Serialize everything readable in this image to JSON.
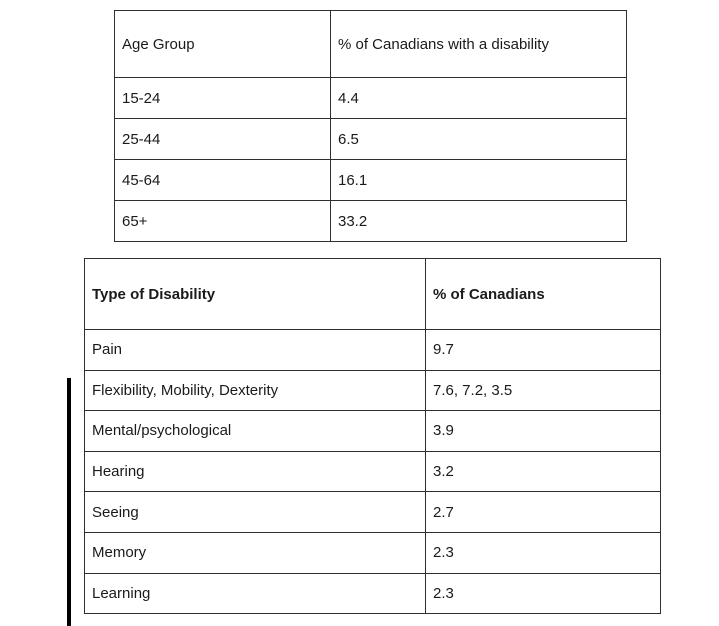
{
  "page": {
    "background_color": "#ffffff",
    "border_color": "#2f2f2f",
    "text_color": "#1a1a1a",
    "change_bar_color": "#000000"
  },
  "age_table": {
    "columns": [
      "Age Group",
      "% of Canadians with a disability"
    ],
    "rows": [
      [
        "15-24",
        "4.4"
      ],
      [
        "25-44",
        "6.5"
      ],
      [
        "45-64",
        "16.1"
      ],
      [
        "65+",
        "33.2"
      ]
    ]
  },
  "disability_type_table": {
    "columns": [
      "Type of Disability",
      "% of Canadians"
    ],
    "rows": [
      [
        "Pain",
        "9.7"
      ],
      [
        "Flexibility, Mobility, Dexterity",
        "7.6, 7.2, 3.5"
      ],
      [
        "Mental/psychological",
        "3.9"
      ],
      [
        "Hearing",
        "3.2"
      ],
      [
        "Seeing",
        "2.7"
      ],
      [
        "Memory",
        "2.3"
      ],
      [
        "Learning",
        "2.3"
      ]
    ]
  }
}
